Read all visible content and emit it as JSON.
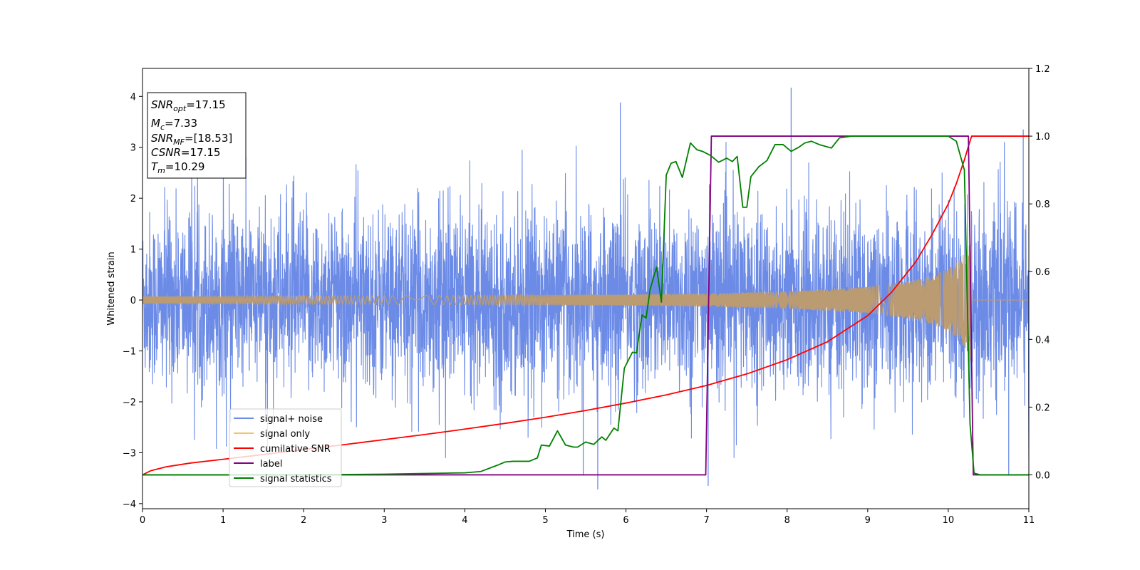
{
  "chart_data": {
    "type": "line",
    "title": "",
    "xlabel": "Time (s)",
    "ylabel": "Whitened strain",
    "xlim": [
      0,
      11
    ],
    "ylim": [
      -4.1,
      4.55
    ],
    "y2lim": [
      -0.1,
      1.2
    ],
    "xticks": [
      0,
      1,
      2,
      3,
      4,
      5,
      6,
      7,
      8,
      9,
      10,
      11
    ],
    "yticks": [
      -4,
      -3,
      -2,
      -1,
      0,
      1,
      2,
      3,
      4
    ],
    "y2ticks": [
      0.0,
      0.2,
      0.4,
      0.6,
      0.8,
      1.0,
      1.2
    ],
    "grid": false,
    "legend": "lower-left",
    "colors": {
      "signal_noise": "#6c8be6",
      "signal_only": "#f5c26b",
      "signal_only_overlap": "#bb9b72",
      "cumulative_snr": "#ff0000",
      "label": "#800080",
      "signal_statistics": "#008000"
    },
    "series": [
      {
        "name": "signal+ noise",
        "axis": "left",
        "description_values": "dense noisy strain, amplitude ~±2 with spikes; notable peaks",
        "spikes": [
          {
            "x": 5.65,
            "y": -3.72
          },
          {
            "x": 5.47,
            "y": -3.45
          },
          {
            "x": 5.93,
            "y": 3.88
          },
          {
            "x": 8.05,
            "y": 4.17
          },
          {
            "x": 10.93,
            "y": 3.35
          },
          {
            "x": 7.02,
            "y": -3.65
          },
          {
            "x": 10.75,
            "y": -3.45
          }
        ]
      },
      {
        "name": "signal only",
        "axis": "left",
        "chirp_end": 10.29,
        "envelope": [
          [
            0,
            0.07
          ],
          [
            2,
            0.08
          ],
          [
            4,
            0.09
          ],
          [
            6,
            0.11
          ],
          [
            7,
            0.13
          ],
          [
            8,
            0.17
          ],
          [
            9,
            0.26
          ],
          [
            9.5,
            0.36
          ],
          [
            9.8,
            0.48
          ],
          [
            10.0,
            0.62
          ],
          [
            10.15,
            0.8
          ],
          [
            10.25,
            1.05
          ],
          [
            10.29,
            1.25
          ]
        ]
      },
      {
        "name": "cumilative SNR",
        "axis": "right",
        "x": [
          0,
          0.1,
          0.3,
          0.6,
          1,
          1.5,
          2,
          2.5,
          3,
          3.5,
          4,
          4.5,
          5,
          5.5,
          6,
          6.5,
          7,
          7.5,
          8,
          8.5,
          9,
          9.3,
          9.6,
          9.8,
          10.0,
          10.1,
          10.2,
          10.25,
          10.29,
          10.3,
          11
        ],
        "y": [
          0.0,
          0.012,
          0.024,
          0.035,
          0.046,
          0.06,
          0.075,
          0.089,
          0.104,
          0.119,
          0.135,
          0.152,
          0.17,
          0.19,
          0.212,
          0.236,
          0.264,
          0.298,
          0.34,
          0.393,
          0.47,
          0.54,
          0.63,
          0.71,
          0.8,
          0.86,
          0.93,
          0.97,
          1.0,
          1.0,
          1.0
        ]
      },
      {
        "name": "label",
        "axis": "right",
        "x": [
          0,
          6.99,
          7.06,
          10.25,
          10.31,
          11
        ],
        "y": [
          0.0,
          0.0,
          1.0,
          1.0,
          0.0,
          0.0
        ]
      },
      {
        "name": "signal statistics",
        "axis": "right",
        "x": [
          0,
          1,
          2,
          3,
          3.5,
          4,
          4.2,
          4.4,
          4.5,
          4.6,
          4.8,
          4.9,
          4.95,
          5.05,
          5.15,
          5.25,
          5.35,
          5.4,
          5.5,
          5.6,
          5.7,
          5.75,
          5.85,
          5.9,
          5.98,
          6.08,
          6.13,
          6.2,
          6.25,
          6.3,
          6.38,
          6.44,
          6.5,
          6.56,
          6.62,
          6.7,
          6.8,
          6.88,
          6.95,
          7.05,
          7.15,
          7.25,
          7.32,
          7.38,
          7.45,
          7.5,
          7.55,
          7.65,
          7.75,
          7.85,
          7.95,
          8.05,
          8.15,
          8.22,
          8.3,
          8.4,
          8.55,
          8.65,
          8.8,
          9.0,
          9.5,
          10.0,
          10.1,
          10.2,
          10.27,
          10.32,
          10.4,
          11
        ],
        "y": [
          0.0,
          0.0,
          0.0,
          0.002,
          0.004,
          0.006,
          0.01,
          0.028,
          0.038,
          0.04,
          0.04,
          0.05,
          0.088,
          0.085,
          0.13,
          0.088,
          0.082,
          0.082,
          0.097,
          0.09,
          0.112,
          0.102,
          0.138,
          0.13,
          0.315,
          0.362,
          0.36,
          0.472,
          0.463,
          0.548,
          0.613,
          0.51,
          0.885,
          0.92,
          0.925,
          0.878,
          0.98,
          0.96,
          0.955,
          0.943,
          0.923,
          0.935,
          0.925,
          0.94,
          0.79,
          0.79,
          0.88,
          0.91,
          0.928,
          0.975,
          0.975,
          0.955,
          0.968,
          0.98,
          0.985,
          0.975,
          0.965,
          0.995,
          1.0,
          1.0,
          1.0,
          1.0,
          0.985,
          0.9,
          0.15,
          0.005,
          0.0,
          0.0
        ]
      }
    ],
    "annotation": {
      "lines": [
        {
          "sym": "SNR",
          "sub": "opt",
          "val": "=17.15"
        },
        {
          "sym": "M",
          "sub": "c",
          "val": "=7.33"
        },
        {
          "sym": "SNR",
          "sub": "MF",
          "val": "=[18.53]"
        },
        {
          "sym": "CSNR",
          "sub": "",
          "val": "=17.15"
        },
        {
          "sym": "T",
          "sub": "m",
          "val": "=10.29"
        }
      ]
    }
  }
}
